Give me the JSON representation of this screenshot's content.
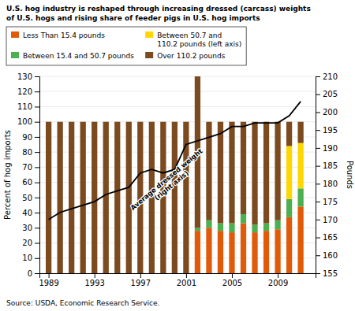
{
  "chart_data": {
    "type": "bar",
    "stacked": true,
    "grid": true,
    "title": "U.S. hog industry is reshaped through increasing dressed (carcass) weights",
    "subtitle": "of U.S. hogs and rising share of feeder pigs in U.S. hog imports",
    "source": "Source: USDA, Economic Research Service.",
    "ylabel": "Percent of hog imports",
    "y2label": "Pounds",
    "x": [
      1989,
      1990,
      1991,
      1992,
      1993,
      1994,
      1995,
      1996,
      1997,
      1998,
      1999,
      2000,
      2001,
      2002,
      2003,
      2004,
      2005,
      2006,
      2007,
      2008,
      2009,
      2010,
      2011
    ],
    "xlim": [
      1988.2,
      2012.3
    ],
    "xticks": [
      1989,
      1993,
      1997,
      2001,
      2005,
      2009
    ],
    "ylim": [
      0,
      130
    ],
    "yticks": [
      0,
      10,
      20,
      30,
      40,
      50,
      60,
      70,
      80,
      90,
      100,
      110,
      120,
      130
    ],
    "y2lim": [
      155,
      210
    ],
    "y2ticks": [
      155,
      160,
      165,
      170,
      175,
      180,
      185,
      190,
      195,
      200,
      205,
      210
    ],
    "series": [
      {
        "name": "Less Than 15.4 pounds",
        "color": "#E05A0A",
        "values": [
          0,
          0,
          0,
          0,
          0,
          0,
          0,
          0,
          0,
          0,
          0,
          0,
          0,
          28,
          30,
          28,
          27,
          33,
          27,
          28,
          29,
          37,
          44
        ]
      },
      {
        "name": "Between 15.4 and 50.7 pounds",
        "color": "#4CAF50",
        "values": [
          0,
          0,
          0,
          0,
          0,
          0,
          0,
          0,
          0,
          0,
          0,
          0,
          0,
          2,
          5,
          5,
          6,
          6,
          5,
          5,
          6,
          12,
          12
        ]
      },
      {
        "name": "Between 50.7 and\n110.2 pounds (left axis)",
        "color": "#FFD700",
        "values": [
          0,
          0,
          0,
          0,
          0,
          0,
          0,
          0,
          0,
          0,
          0,
          0,
          0,
          0,
          0,
          0,
          0,
          0,
          0,
          0,
          0,
          35,
          30
        ]
      },
      {
        "name": "Over 110.2 pounds",
        "color": "#7B4A1E",
        "values": [
          100,
          100,
          100,
          100,
          100,
          100,
          100,
          100,
          100,
          100,
          100,
          100,
          100,
          100,
          65,
          67,
          67,
          61,
          68,
          67,
          65,
          16,
          14
        ]
      },
      {
        "type": "line",
        "axis": "y2",
        "color": "black",
        "values": [
          170,
          172,
          173,
          174,
          175,
          177,
          178,
          179,
          183,
          184,
          183,
          184,
          191,
          192,
          193,
          194,
          196,
          196,
          197,
          197,
          197,
          199,
          203
        ]
      }
    ],
    "annotations": [
      {
        "text": "Average dressed weight\n(right axis)",
        "x": 1999.5,
        "y": 60
      }
    ]
  }
}
